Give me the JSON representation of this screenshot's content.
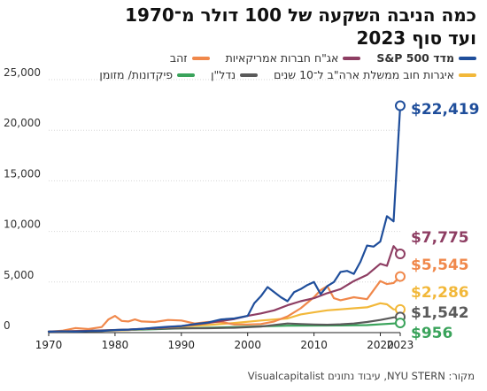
{
  "title_line1": "כמה הניבה השקעה של 100 דולר מ־1970",
  "title_line2": "ועד סוף 2023",
  "source": "מקור: NYU STERN, עיבוד נתונים Visualcapitalist",
  "chart_data": {
    "type": "line",
    "title": "כמה הניבה השקעה של 100 דולר מ־1970 ועד סוף 2023",
    "xlim": [
      1970,
      2023
    ],
    "ylim": [
      0,
      25000
    ],
    "xticks": [
      1970,
      1980,
      1990,
      2000,
      2010,
      2020,
      2023
    ],
    "yticks": [
      0,
      5000,
      10000,
      15000,
      20000,
      25000
    ],
    "ytick_labels": [
      "0",
      "5,000",
      "10,000",
      "15,000",
      "20,000",
      "25,000"
    ],
    "grid": "horizontal",
    "legend_position": "top",
    "series": [
      {
        "name": "מדד S&P 500",
        "color": "#1f4e9b",
        "end_label": "$22,419",
        "x": [
          1970,
          1972,
          1974,
          1976,
          1978,
          1980,
          1982,
          1984,
          1986,
          1988,
          1990,
          1992,
          1994,
          1996,
          1998,
          2000,
          2001,
          2002,
          2003,
          2004,
          2005,
          2006,
          2007,
          2008,
          2009,
          2010,
          2011,
          2012,
          2013,
          2014,
          2015,
          2016,
          2017,
          2018,
          2019,
          2020,
          2021,
          2022,
          2023
        ],
        "y": [
          100,
          130,
          100,
          150,
          170,
          250,
          300,
          360,
          480,
          580,
          650,
          850,
          1000,
          1300,
          1400,
          1650,
          2900,
          3600,
          4500,
          4000,
          3500,
          3100,
          4000,
          4300,
          4700,
          5000,
          3800,
          4600,
          5000,
          6000,
          6100,
          5800,
          7000,
          8600,
          8500,
          9000,
          11500,
          11000,
          22419
        ]
      },
      {
        "name": "אג\"ח חברות אמריקאיות",
        "color": "#8e3e63",
        "end_label": "$7,775",
        "x": [
          1970,
          1974,
          1978,
          1982,
          1986,
          1990,
          1994,
          1998,
          2000,
          2002,
          2004,
          2006,
          2008,
          2010,
          2012,
          2014,
          2016,
          2018,
          2020,
          2021,
          2022,
          2023
        ],
        "y": [
          100,
          150,
          200,
          300,
          450,
          650,
          950,
          1350,
          1650,
          1900,
          2200,
          2700,
          3100,
          3400,
          3900,
          4300,
          5100,
          5700,
          6800,
          6600,
          8550,
          7775
        ]
      },
      {
        "name": "זהב",
        "color": "#f0884b",
        "end_label": "$5,545",
        "x": [
          1970,
          1972,
          1974,
          1976,
          1978,
          1979,
          1980,
          1981,
          1982,
          1983,
          1984,
          1986,
          1988,
          1990,
          1992,
          1994,
          1996,
          1998,
          2000,
          2002,
          2004,
          2006,
          2008,
          2010,
          2011,
          2012,
          2013,
          2014,
          2016,
          2018,
          2020,
          2021,
          2022,
          2023
        ],
        "y": [
          100,
          180,
          450,
          350,
          550,
          1300,
          1650,
          1150,
          1100,
          1300,
          1100,
          1050,
          1250,
          1200,
          900,
          1050,
          1050,
          800,
          800,
          850,
          1100,
          1600,
          2400,
          3500,
          4200,
          4600,
          3400,
          3200,
          3500,
          3300,
          5100,
          4800,
          4900,
          5545
        ]
      },
      {
        "name": "איגרות חוב ממשלת ארה\"ב ל־10 שנים",
        "color": "#f2b83a",
        "end_label": "$2,286",
        "x": [
          1970,
          1974,
          1978,
          1982,
          1986,
          1990,
          1994,
          1998,
          2002,
          2006,
          2008,
          2010,
          2012,
          2014,
          2016,
          2018,
          2020,
          2021,
          2022,
          2023
        ],
        "y": [
          100,
          130,
          170,
          250,
          450,
          600,
          750,
          950,
          1200,
          1400,
          1800,
          2000,
          2200,
          2300,
          2400,
          2500,
          2900,
          2800,
          2300,
          2286
        ]
      },
      {
        "name": "נדל\"ן",
        "color": "#5a5a5a",
        "end_label": "$1,542",
        "x": [
          1970,
          1974,
          1978,
          1982,
          1986,
          1990,
          1994,
          1998,
          2002,
          2006,
          2008,
          2010,
          2012,
          2014,
          2016,
          2018,
          2020,
          2022,
          2023
        ],
        "y": [
          100,
          150,
          220,
          300,
          380,
          420,
          440,
          480,
          600,
          900,
          850,
          800,
          780,
          820,
          900,
          1050,
          1250,
          1500,
          1542
        ]
      },
      {
        "name": "פיקדונות/ מזומן",
        "color": "#3aa35b",
        "end_label": "$956",
        "x": [
          1970,
          1974,
          1978,
          1982,
          1986,
          1990,
          1994,
          1998,
          2002,
          2006,
          2010,
          2014,
          2018,
          2022,
          2023
        ],
        "y": [
          100,
          130,
          180,
          260,
          340,
          420,
          480,
          550,
          620,
          680,
          700,
          710,
          740,
          900,
          956
        ]
      }
    ]
  },
  "legend_rows": [
    [
      0,
      1,
      2
    ],
    [
      3,
      4,
      5
    ]
  ]
}
